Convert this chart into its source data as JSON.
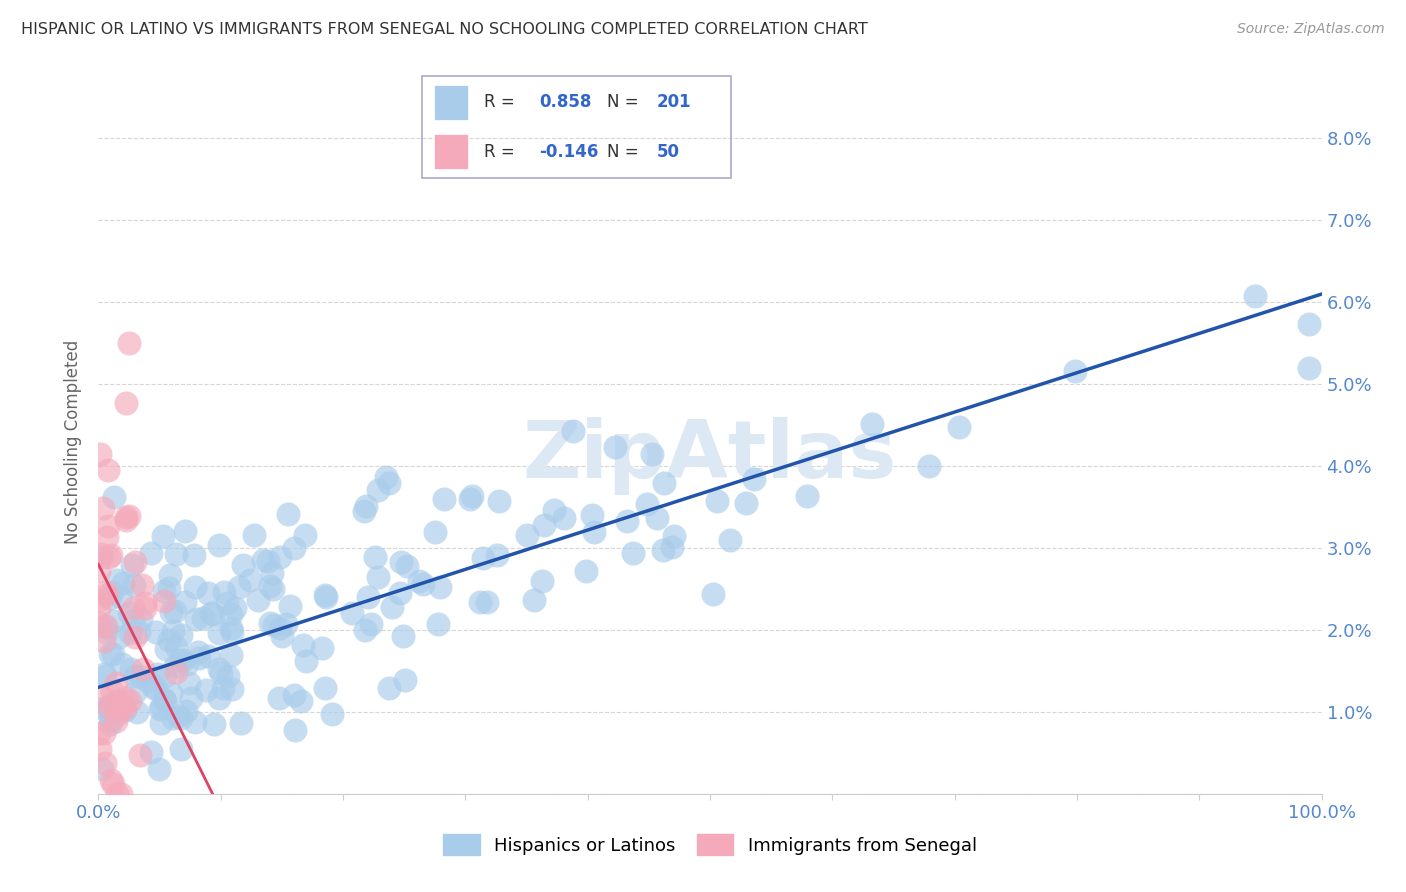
{
  "title": "HISPANIC OR LATINO VS IMMIGRANTS FROM SENEGAL NO SCHOOLING COMPLETED CORRELATION CHART",
  "source": "Source: ZipAtlas.com",
  "ylabel": "No Schooling Completed",
  "xlim": [
    0,
    1.0
  ],
  "ylim": [
    0,
    0.086
  ],
  "blue_color": "#A8CCEA",
  "pink_color": "#F4AABB",
  "blue_line_color": "#2255AA",
  "pink_line_color": "#DD4466",
  "watermark": "ZipAtlas",
  "legend_R_blue": "0.858",
  "legend_N_blue": "201",
  "legend_R_pink": "-0.146",
  "legend_N_pink": "50",
  "blue_N": 201,
  "pink_N": 50,
  "seed_blue": 77,
  "seed_pink": 55,
  "background_color": "#ffffff",
  "grid_color": "#cccccc",
  "title_color": "#333333",
  "axis_label_color": "#666666",
  "tick_label_color": "#5588CC",
  "legend_text_color": "#333333",
  "legend_value_color": "#3366CC"
}
